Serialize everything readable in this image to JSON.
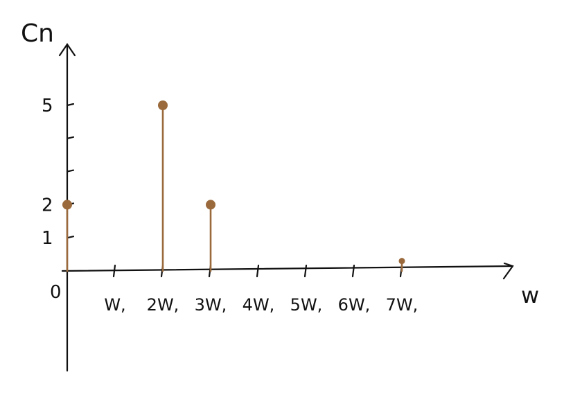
{
  "chart_data": {
    "type": "stem",
    "title": "",
    "ylabel": "Cn",
    "xlabel": "w",
    "origin_label": "0",
    "x_tick_labels": [
      "W,",
      "2W,",
      "3W,",
      "4W,",
      "5W,",
      "6W,",
      "7W,"
    ],
    "y_tick_labels": [
      {
        "value": 1,
        "label": "1"
      },
      {
        "value": 2,
        "label": "2"
      },
      {
        "value": 5,
        "label": "5"
      }
    ],
    "points": [
      {
        "x": 0,
        "y": 2
      },
      {
        "x": 2,
        "y": 5
      },
      {
        "x": 3,
        "y": 2
      },
      {
        "x": 7,
        "y": 0.3
      }
    ],
    "xlim": [
      0,
      9
    ],
    "ylim": [
      0,
      6.5
    ],
    "colors": {
      "stem": "#9b6a3c",
      "axis": "#111111"
    }
  }
}
